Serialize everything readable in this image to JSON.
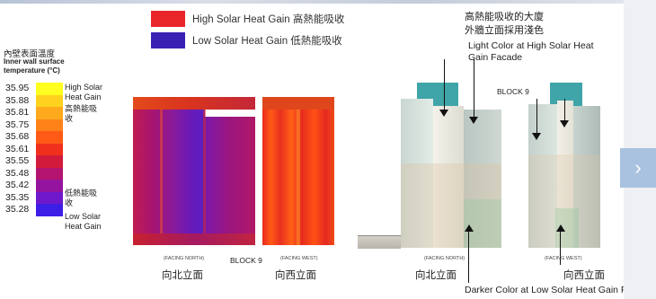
{
  "legend": {
    "high_label": "High Solar Heat Gain 高熱能吸收",
    "low_label": "Low Solar Heat Gain 低熱能吸收",
    "high_color": "#e8262a",
    "low_color": "#3a1fb4"
  },
  "scale": {
    "title_zh": "內壁表面溫度",
    "title_en": "Inner wall surface temperature (°C)",
    "values": [
      "35.95",
      "35.88",
      "35.81",
      "35.75",
      "35.68",
      "35.61",
      "35.55",
      "35.48",
      "35.42",
      "35.35",
      "35.28"
    ],
    "colors": [
      "#ffff20",
      "#ffd21e",
      "#ffaa1c",
      "#ff8219",
      "#ff5a16",
      "#f0301c",
      "#d21a3c",
      "#b4146e",
      "#9414a0",
      "#6e18cc",
      "#3c1ee6"
    ],
    "high_note_en": "High Solar Heat Gain",
    "high_note_zh": "高熱能吸收",
    "low_note_zh": "低熱能吸收",
    "low_note_en": "Low Solar Heat Gain"
  },
  "thermal": {
    "facing_north": "(FACING NORTH)",
    "facing_west": "(FACING WEST)",
    "block_label": "BLOCK 9",
    "north_elevation_zh": "向北立面",
    "west_elevation_zh": "向西立面"
  },
  "photo": {
    "facing_north": "(FACING NORTH)",
    "facing_west": "(FACING WEST)",
    "block_label": "BLOCK 9",
    "north_elevation_zh": "向北立面",
    "west_elevation_zh": "向西立面",
    "note_zh_line1": "高熱能吸收的大廈",
    "note_zh_line2": "外牆立面採用淺色",
    "note_en_light": "Light Color at High Solar Heat Gain Facade",
    "note_en_dark": "Darker Color at Low Solar Heat Gain Facade"
  },
  "nav": {
    "next_symbol": "›"
  }
}
